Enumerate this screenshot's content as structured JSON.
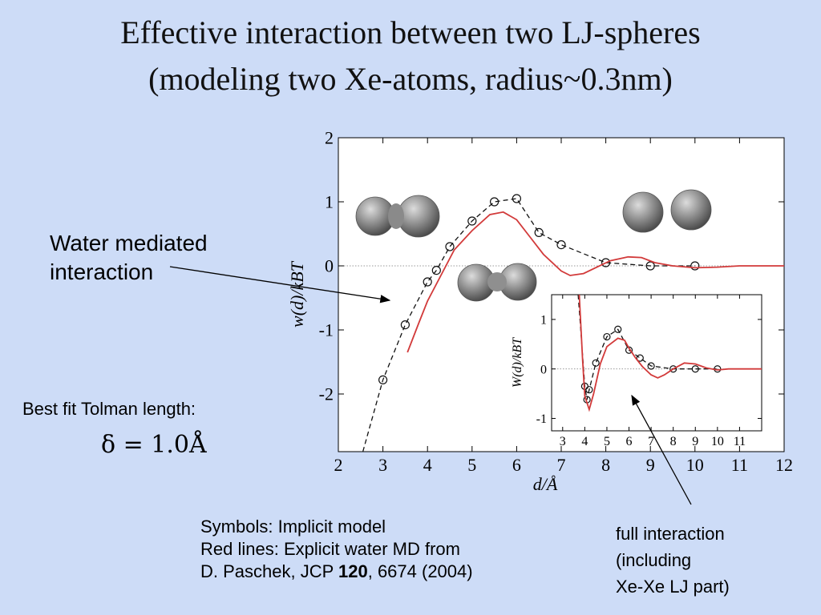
{
  "slide": {
    "title_line1": "Effective interaction between  two LJ-spheres",
    "title_line2": "(modeling two Xe-atoms, radius~0.3nm)",
    "label_water_line1": "Water mediated",
    "label_water_line2": "interaction",
    "label_tolman": "Best fit Tolman length:",
    "tolman_formula": "δ = 1.0Å",
    "legend_line1": "Symbols: Implicit model",
    "legend_line2": "Red lines: Explicit water MD from",
    "legend_line3_a": "D. Paschek, JCP ",
    "legend_line3_b": "120",
    "legend_line3_c": ", 6674 (2004)",
    "label_full_line1": "full interaction",
    "label_full_line2": "(including",
    "label_full_line3": "Xe-Xe LJ part)"
  },
  "colors": {
    "background": "#cddcf7",
    "symbols": "#111111",
    "red_line": "#d23a3a"
  },
  "chart_data": [
    {
      "type": "line",
      "xlabel": "d/Å",
      "ylabel": "w(d)/kBT",
      "xlim": [
        2,
        12
      ],
      "ylim": [
        -2.9,
        2
      ],
      "xticks": [
        2,
        3,
        4,
        5,
        6,
        7,
        8,
        9,
        10,
        11,
        12
      ],
      "yticks": [
        -2,
        -1,
        0,
        1,
        2
      ],
      "series": [
        {
          "style": "symbols-dashed",
          "x": [
            2.55,
            3.0,
            3.5,
            4.0,
            4.2,
            4.5,
            5.0,
            5.5,
            6.0,
            6.5,
            7.0,
            8.0,
            9.0,
            10.0
          ],
          "y": [
            -2.9,
            -1.78,
            -0.92,
            -0.25,
            -0.07,
            0.3,
            0.7,
            1.0,
            1.05,
            0.52,
            0.33,
            0.05,
            0.0,
            0.0
          ],
          "markers": [
            false,
            true,
            true,
            true,
            true,
            true,
            true,
            true,
            true,
            true,
            true,
            true,
            true,
            true
          ]
        },
        {
          "style": "red-line",
          "x": [
            3.55,
            3.8,
            4.0,
            4.3,
            4.6,
            5.0,
            5.4,
            5.7,
            6.0,
            6.3,
            6.6,
            7.0,
            7.2,
            7.5,
            7.8,
            8.1,
            8.5,
            8.8,
            9.1,
            9.5,
            10.0,
            10.5,
            11.0,
            11.5,
            12.0
          ],
          "y": [
            -1.35,
            -0.9,
            -0.55,
            -0.15,
            0.25,
            0.55,
            0.8,
            0.84,
            0.72,
            0.45,
            0.18,
            -0.08,
            -0.15,
            -0.12,
            -0.02,
            0.08,
            0.14,
            0.13,
            0.05,
            0.0,
            -0.03,
            -0.02,
            0.0,
            0.0,
            0.0
          ]
        }
      ]
    },
    {
      "type": "line",
      "xlabel": "",
      "ylabel": "W(d)/kBT",
      "xlim": [
        2.5,
        12
      ],
      "ylim": [
        -1.25,
        1.5
      ],
      "xticks": [
        3,
        4,
        5,
        6,
        7,
        8,
        9,
        10,
        11
      ],
      "yticks": [
        -1,
        0,
        1
      ],
      "series": [
        {
          "style": "symbols-dashed",
          "x": [
            3.7,
            3.85,
            4.0,
            4.1,
            4.2,
            4.5,
            5.0,
            5.5,
            6.0,
            6.5,
            7.0,
            8.0,
            9.0,
            10.0
          ],
          "y": [
            1.5,
            0.6,
            -0.35,
            -0.62,
            -0.42,
            0.12,
            0.65,
            0.8,
            0.38,
            0.22,
            0.06,
            0.0,
            0.0,
            0.0
          ],
          "markers": [
            false,
            false,
            true,
            true,
            true,
            true,
            true,
            true,
            true,
            true,
            true,
            true,
            true,
            true
          ]
        },
        {
          "style": "red-line",
          "x": [
            3.75,
            3.9,
            4.0,
            4.2,
            4.4,
            4.7,
            5.0,
            5.5,
            5.8,
            6.0,
            6.3,
            6.6,
            7.0,
            7.3,
            7.6,
            8.0,
            8.5,
            9.0,
            9.5,
            10.0,
            10.5,
            11.0,
            12.0
          ],
          "y": [
            1.5,
            0.2,
            -0.55,
            -0.82,
            -0.5,
            0.1,
            0.45,
            0.62,
            0.58,
            0.42,
            0.22,
            0.05,
            -0.12,
            -0.18,
            -0.12,
            0.0,
            0.12,
            0.1,
            0.02,
            -0.02,
            0.0,
            0.0,
            0.0
          ]
        }
      ]
    }
  ]
}
